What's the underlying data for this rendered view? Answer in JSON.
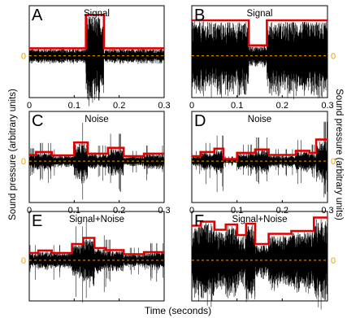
{
  "chart_data": {
    "type": "line",
    "ylabel": "Sound pressure (arbitrary units)",
    "xlabel": "Time (seconds)",
    "xlim": [
      0,
      0.3
    ],
    "x_ticks": [
      "0",
      "0.1",
      "0.2",
      "0.3"
    ],
    "zero_label": "0",
    "colors": {
      "waveform": "#000000",
      "envelope": "#e00000",
      "zero_line": "#f0a000",
      "tick_text": "#000000",
      "zero_text": "#f0a000"
    },
    "panels": [
      {
        "letter": "A",
        "title": "Signal",
        "ylim": [
          -1,
          1.2
        ],
        "show_xticks": true,
        "bursts": false,
        "envelope": {
          "x": [
            0,
            0.126,
            0.126,
            0.166,
            0.166,
            0.3
          ],
          "y": [
            0.18,
            0.18,
            0.98,
            0.98,
            0.18,
            0.18
          ]
        },
        "trace": [
          {
            "x": [
              0,
              0.126
            ],
            "amp": 0.16
          },
          {
            "x": [
              0.126,
              0.166
            ],
            "amp": 0.95
          },
          {
            "x": [
              0.166,
              0.3
            ],
            "amp": 0.16
          }
        ]
      },
      {
        "letter": "B",
        "title": "Signal",
        "ylim": [
          -1,
          1.2
        ],
        "show_xticks": true,
        "bursts": false,
        "envelope": {
          "x": [
            0,
            0.126,
            0.126,
            0.166,
            0.166,
            0.3
          ],
          "y": [
            0.85,
            0.85,
            0.25,
            0.25,
            0.85,
            0.85
          ]
        },
        "trace": [
          {
            "x": [
              0,
              0.126
            ],
            "amp": 0.82
          },
          {
            "x": [
              0.126,
              0.166
            ],
            "amp": 0.23
          },
          {
            "x": [
              0.166,
              0.3
            ],
            "amp": 0.82
          }
        ]
      },
      {
        "letter": "C",
        "title": "Noise",
        "ylim": [
          -1,
          1.2
        ],
        "show_xticks": true,
        "bursts": true,
        "envelope": {
          "x": [
            0,
            0.015,
            0.015,
            0.05,
            0.05,
            0.1,
            0.1,
            0.13,
            0.13,
            0.175,
            0.175,
            0.21,
            0.21,
            0.255,
            0.255,
            0.3
          ],
          "y": [
            0.15,
            0.15,
            0.22,
            0.22,
            0.14,
            0.14,
            0.45,
            0.45,
            0.18,
            0.18,
            0.32,
            0.32,
            0.12,
            0.12,
            0.18,
            0.18
          ]
        },
        "trace": [
          {
            "x": [
              0,
              0.015
            ],
            "amp": 0.14
          },
          {
            "x": [
              0.015,
              0.05
            ],
            "amp": 0.2
          },
          {
            "x": [
              0.05,
              0.1
            ],
            "amp": 0.13
          },
          {
            "x": [
              0.1,
              0.13
            ],
            "amp": 0.42
          },
          {
            "x": [
              0.13,
              0.175
            ],
            "amp": 0.17
          },
          {
            "x": [
              0.175,
              0.21
            ],
            "amp": 0.3
          },
          {
            "x": [
              0.21,
              0.255
            ],
            "amp": 0.11
          },
          {
            "x": [
              0.255,
              0.3
            ],
            "amp": 0.17
          }
        ]
      },
      {
        "letter": "D",
        "title": "Noise",
        "ylim": [
          -1,
          1.2
        ],
        "show_xticks": true,
        "bursts": true,
        "envelope": {
          "x": [
            0,
            0.02,
            0.02,
            0.05,
            0.05,
            0.07,
            0.07,
            0.1,
            0.1,
            0.14,
            0.14,
            0.17,
            0.17,
            0.2,
            0.2,
            0.23,
            0.23,
            0.26,
            0.26,
            0.275,
            0.275,
            0.3
          ],
          "y": [
            0.12,
            0.12,
            0.22,
            0.22,
            0.3,
            0.3,
            0.05,
            0.05,
            0.2,
            0.2,
            0.28,
            0.28,
            0.15,
            0.15,
            0.15,
            0.15,
            0.25,
            0.25,
            0.2,
            0.2,
            0.52,
            0.52
          ]
        },
        "trace": [
          {
            "x": [
              0,
              0.02
            ],
            "amp": 0.11
          },
          {
            "x": [
              0.02,
              0.05
            ],
            "amp": 0.2
          },
          {
            "x": [
              0.05,
              0.07
            ],
            "amp": 0.28
          },
          {
            "x": [
              0.07,
              0.1
            ],
            "amp": 0.05
          },
          {
            "x": [
              0.1,
              0.14
            ],
            "amp": 0.18
          },
          {
            "x": [
              0.14,
              0.17
            ],
            "amp": 0.26
          },
          {
            "x": [
              0.17,
              0.23
            ],
            "amp": 0.13
          },
          {
            "x": [
              0.23,
              0.26
            ],
            "amp": 0.23
          },
          {
            "x": [
              0.26,
              0.275
            ],
            "amp": 0.18
          },
          {
            "x": [
              0.275,
              0.3
            ],
            "amp": 0.5
          }
        ]
      },
      {
        "letter": "E",
        "title": "Signal+Noise",
        "ylim": [
          -1,
          1.2
        ],
        "show_xticks": false,
        "bursts": true,
        "envelope": {
          "x": [
            0,
            0.02,
            0.02,
            0.05,
            0.05,
            0.095,
            0.095,
            0.12,
            0.12,
            0.145,
            0.145,
            0.17,
            0.17,
            0.21,
            0.21,
            0.255,
            0.255,
            0.3
          ],
          "y": [
            0.18,
            0.18,
            0.24,
            0.24,
            0.18,
            0.18,
            0.4,
            0.4,
            0.55,
            0.55,
            0.3,
            0.3,
            0.25,
            0.25,
            0.15,
            0.15,
            0.2,
            0.2
          ]
        },
        "trace": [
          {
            "x": [
              0,
              0.02
            ],
            "amp": 0.17
          },
          {
            "x": [
              0.02,
              0.05
            ],
            "amp": 0.22
          },
          {
            "x": [
              0.05,
              0.095
            ],
            "amp": 0.17
          },
          {
            "x": [
              0.095,
              0.12
            ],
            "amp": 0.38
          },
          {
            "x": [
              0.12,
              0.145
            ],
            "amp": 0.53
          },
          {
            "x": [
              0.145,
              0.17
            ],
            "amp": 0.28
          },
          {
            "x": [
              0.17,
              0.21
            ],
            "amp": 0.23
          },
          {
            "x": [
              0.21,
              0.255
            ],
            "amp": 0.14
          },
          {
            "x": [
              0.255,
              0.3
            ],
            "amp": 0.19
          }
        ]
      },
      {
        "letter": "F",
        "title": "Signal+Noise",
        "ylim": [
          -1,
          1.2
        ],
        "show_xticks": false,
        "bursts": false,
        "envelope": {
          "x": [
            0,
            0.02,
            0.02,
            0.05,
            0.05,
            0.075,
            0.075,
            0.1,
            0.1,
            0.12,
            0.12,
            0.14,
            0.14,
            0.17,
            0.17,
            0.22,
            0.22,
            0.27,
            0.27,
            0.3
          ],
          "y": [
            0.85,
            0.85,
            0.95,
            0.95,
            0.75,
            0.75,
            0.88,
            0.88,
            0.62,
            0.62,
            0.9,
            0.9,
            0.4,
            0.4,
            0.65,
            0.65,
            0.72,
            0.72,
            1.05,
            1.05
          ]
        },
        "trace": [
          {
            "x": [
              0,
              0.02
            ],
            "amp": 0.82
          },
          {
            "x": [
              0.02,
              0.05
            ],
            "amp": 0.93
          },
          {
            "x": [
              0.05,
              0.075
            ],
            "amp": 0.72
          },
          {
            "x": [
              0.075,
              0.1
            ],
            "amp": 0.86
          },
          {
            "x": [
              0.1,
              0.12
            ],
            "amp": 0.6
          },
          {
            "x": [
              0.12,
              0.14
            ],
            "amp": 0.88
          },
          {
            "x": [
              0.14,
              0.17
            ],
            "amp": 0.38
          },
          {
            "x": [
              0.17,
              0.22
            ],
            "amp": 0.63
          },
          {
            "x": [
              0.22,
              0.27
            ],
            "amp": 0.7
          },
          {
            "x": [
              0.27,
              0.3
            ],
            "amp": 1.02
          }
        ]
      }
    ]
  }
}
